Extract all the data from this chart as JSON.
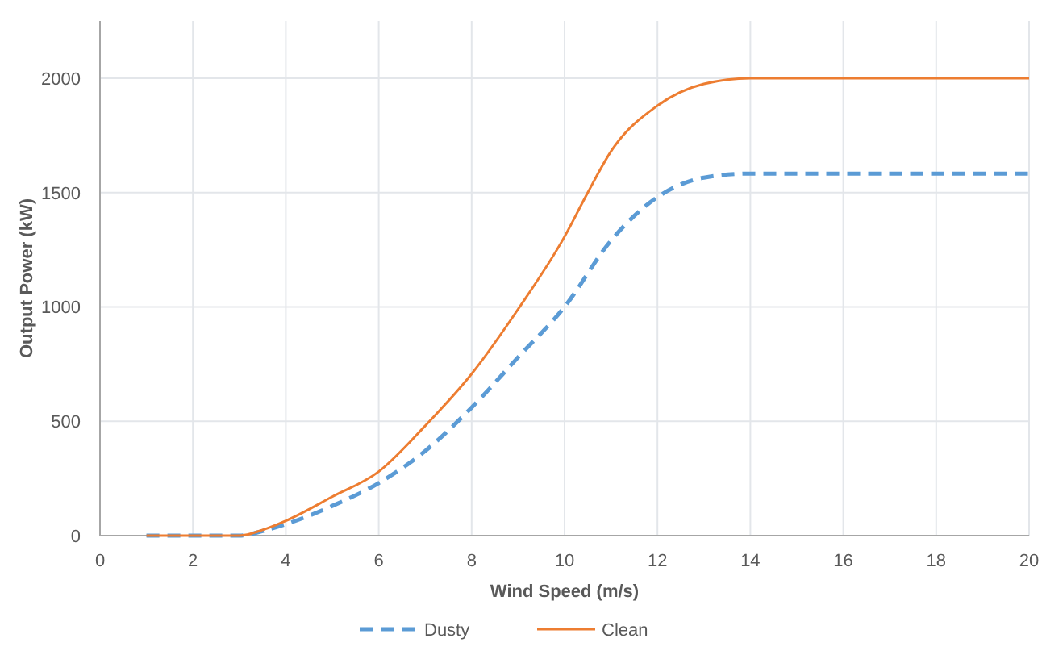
{
  "chart_data": {
    "type": "line",
    "xlabel": "Wind Speed (m/s)",
    "ylabel": "Output Power (kW)",
    "xlim": [
      0,
      20
    ],
    "xticks": [
      0,
      2,
      4,
      6,
      8,
      10,
      12,
      14,
      16,
      18,
      20
    ],
    "ylim": [
      0,
      2250
    ],
    "yticks": [
      0,
      500,
      1000,
      1500,
      2000
    ],
    "grid": true,
    "legend": "bottom",
    "marker": "none",
    "series": [
      {
        "name": "Dusty",
        "color": "#5b9bd5",
        "line_style": "dashed",
        "x": [
          1,
          2,
          3,
          3.5,
          4,
          5,
          6,
          7,
          8,
          9,
          10,
          11,
          12,
          13,
          14,
          16,
          18,
          20
        ],
        "values": [
          0,
          0,
          0,
          20,
          50,
          130,
          230,
          370,
          560,
          780,
          1000,
          1290,
          1480,
          1565,
          1583,
          1583,
          1583,
          1583
        ]
      },
      {
        "name": "Clean",
        "color": "#ed7d31",
        "line_style": "solid",
        "x": [
          1,
          2,
          3,
          3.5,
          4,
          5,
          6,
          7,
          8,
          9,
          10,
          10.5,
          11,
          12,
          13,
          14,
          16,
          18,
          20
        ],
        "values": [
          0,
          0,
          0,
          25,
          65,
          170,
          280,
          480,
          707,
          990,
          1307,
          1500,
          1680,
          1880,
          1975,
          2000,
          2000,
          2000,
          2000
        ]
      }
    ]
  }
}
